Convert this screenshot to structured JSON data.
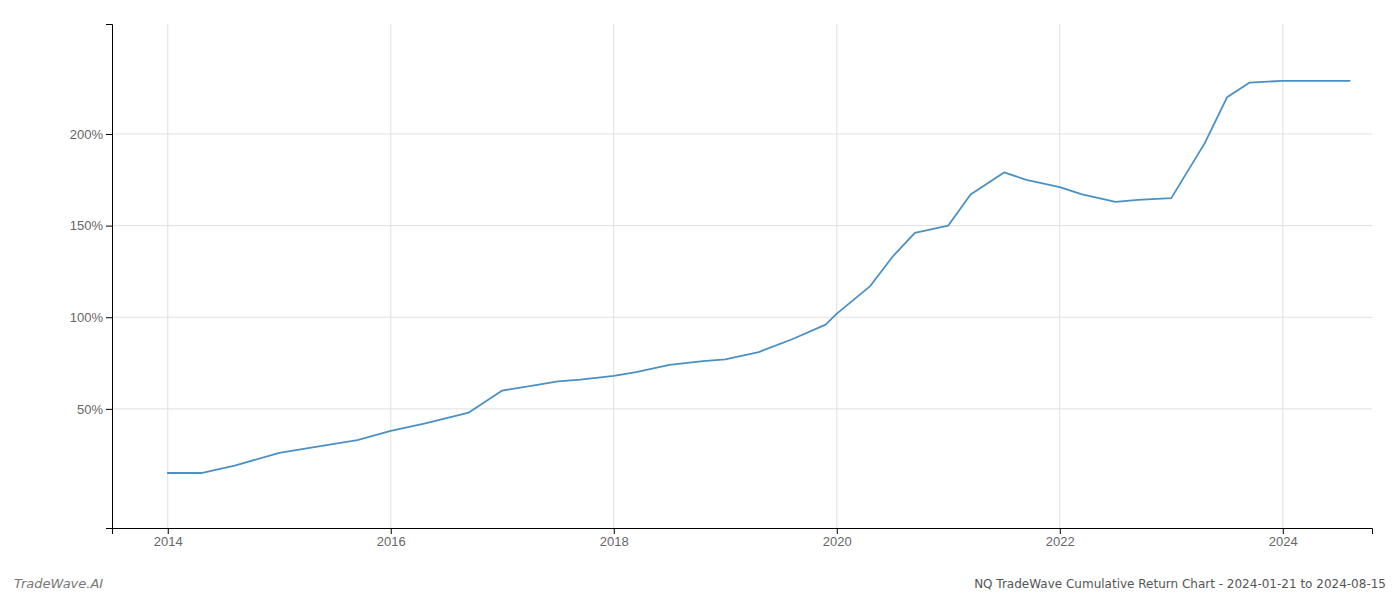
{
  "chart_data": {
    "type": "line",
    "title": "NQ TradeWave Cumulative Return Chart - 2024-01-21 to 2024-08-15",
    "annotations": [
      "TradeWave.AI"
    ],
    "x": [
      2014.0,
      2014.3,
      2014.6,
      2015.0,
      2015.3,
      2015.7,
      2016.0,
      2016.3,
      2016.7,
      2017.0,
      2017.3,
      2017.5,
      2017.7,
      2018.0,
      2018.2,
      2018.5,
      2018.8,
      2019.0,
      2019.3,
      2019.6,
      2019.9,
      2020.0,
      2020.3,
      2020.5,
      2020.7,
      2021.0,
      2021.2,
      2021.5,
      2021.7,
      2022.0,
      2022.2,
      2022.5,
      2022.7,
      2023.0,
      2023.3,
      2023.5,
      2023.7,
      2024.0,
      2024.6
    ],
    "values": [
      15,
      15,
      19,
      26,
      29,
      33,
      38,
      42,
      48,
      60,
      63,
      65,
      66,
      68,
      70,
      74,
      76,
      77,
      81,
      88,
      96,
      102,
      117,
      133,
      146,
      150,
      167,
      179,
      175,
      171,
      167,
      163,
      164,
      165,
      195,
      220,
      228,
      229,
      229
    ],
    "color": "#4a90c4",
    "xlim": [
      2013.5,
      2024.8
    ],
    "ylim": [
      -15,
      260
    ],
    "xticks": [
      2014,
      2016,
      2018,
      2020,
      2022,
      2024
    ],
    "yticks": [
      {
        "value": 50,
        "label": "50%"
      },
      {
        "value": 100,
        "label": "100%"
      },
      {
        "value": 150,
        "label": "150%"
      },
      {
        "value": 200,
        "label": "200%"
      }
    ],
    "grid": true
  }
}
